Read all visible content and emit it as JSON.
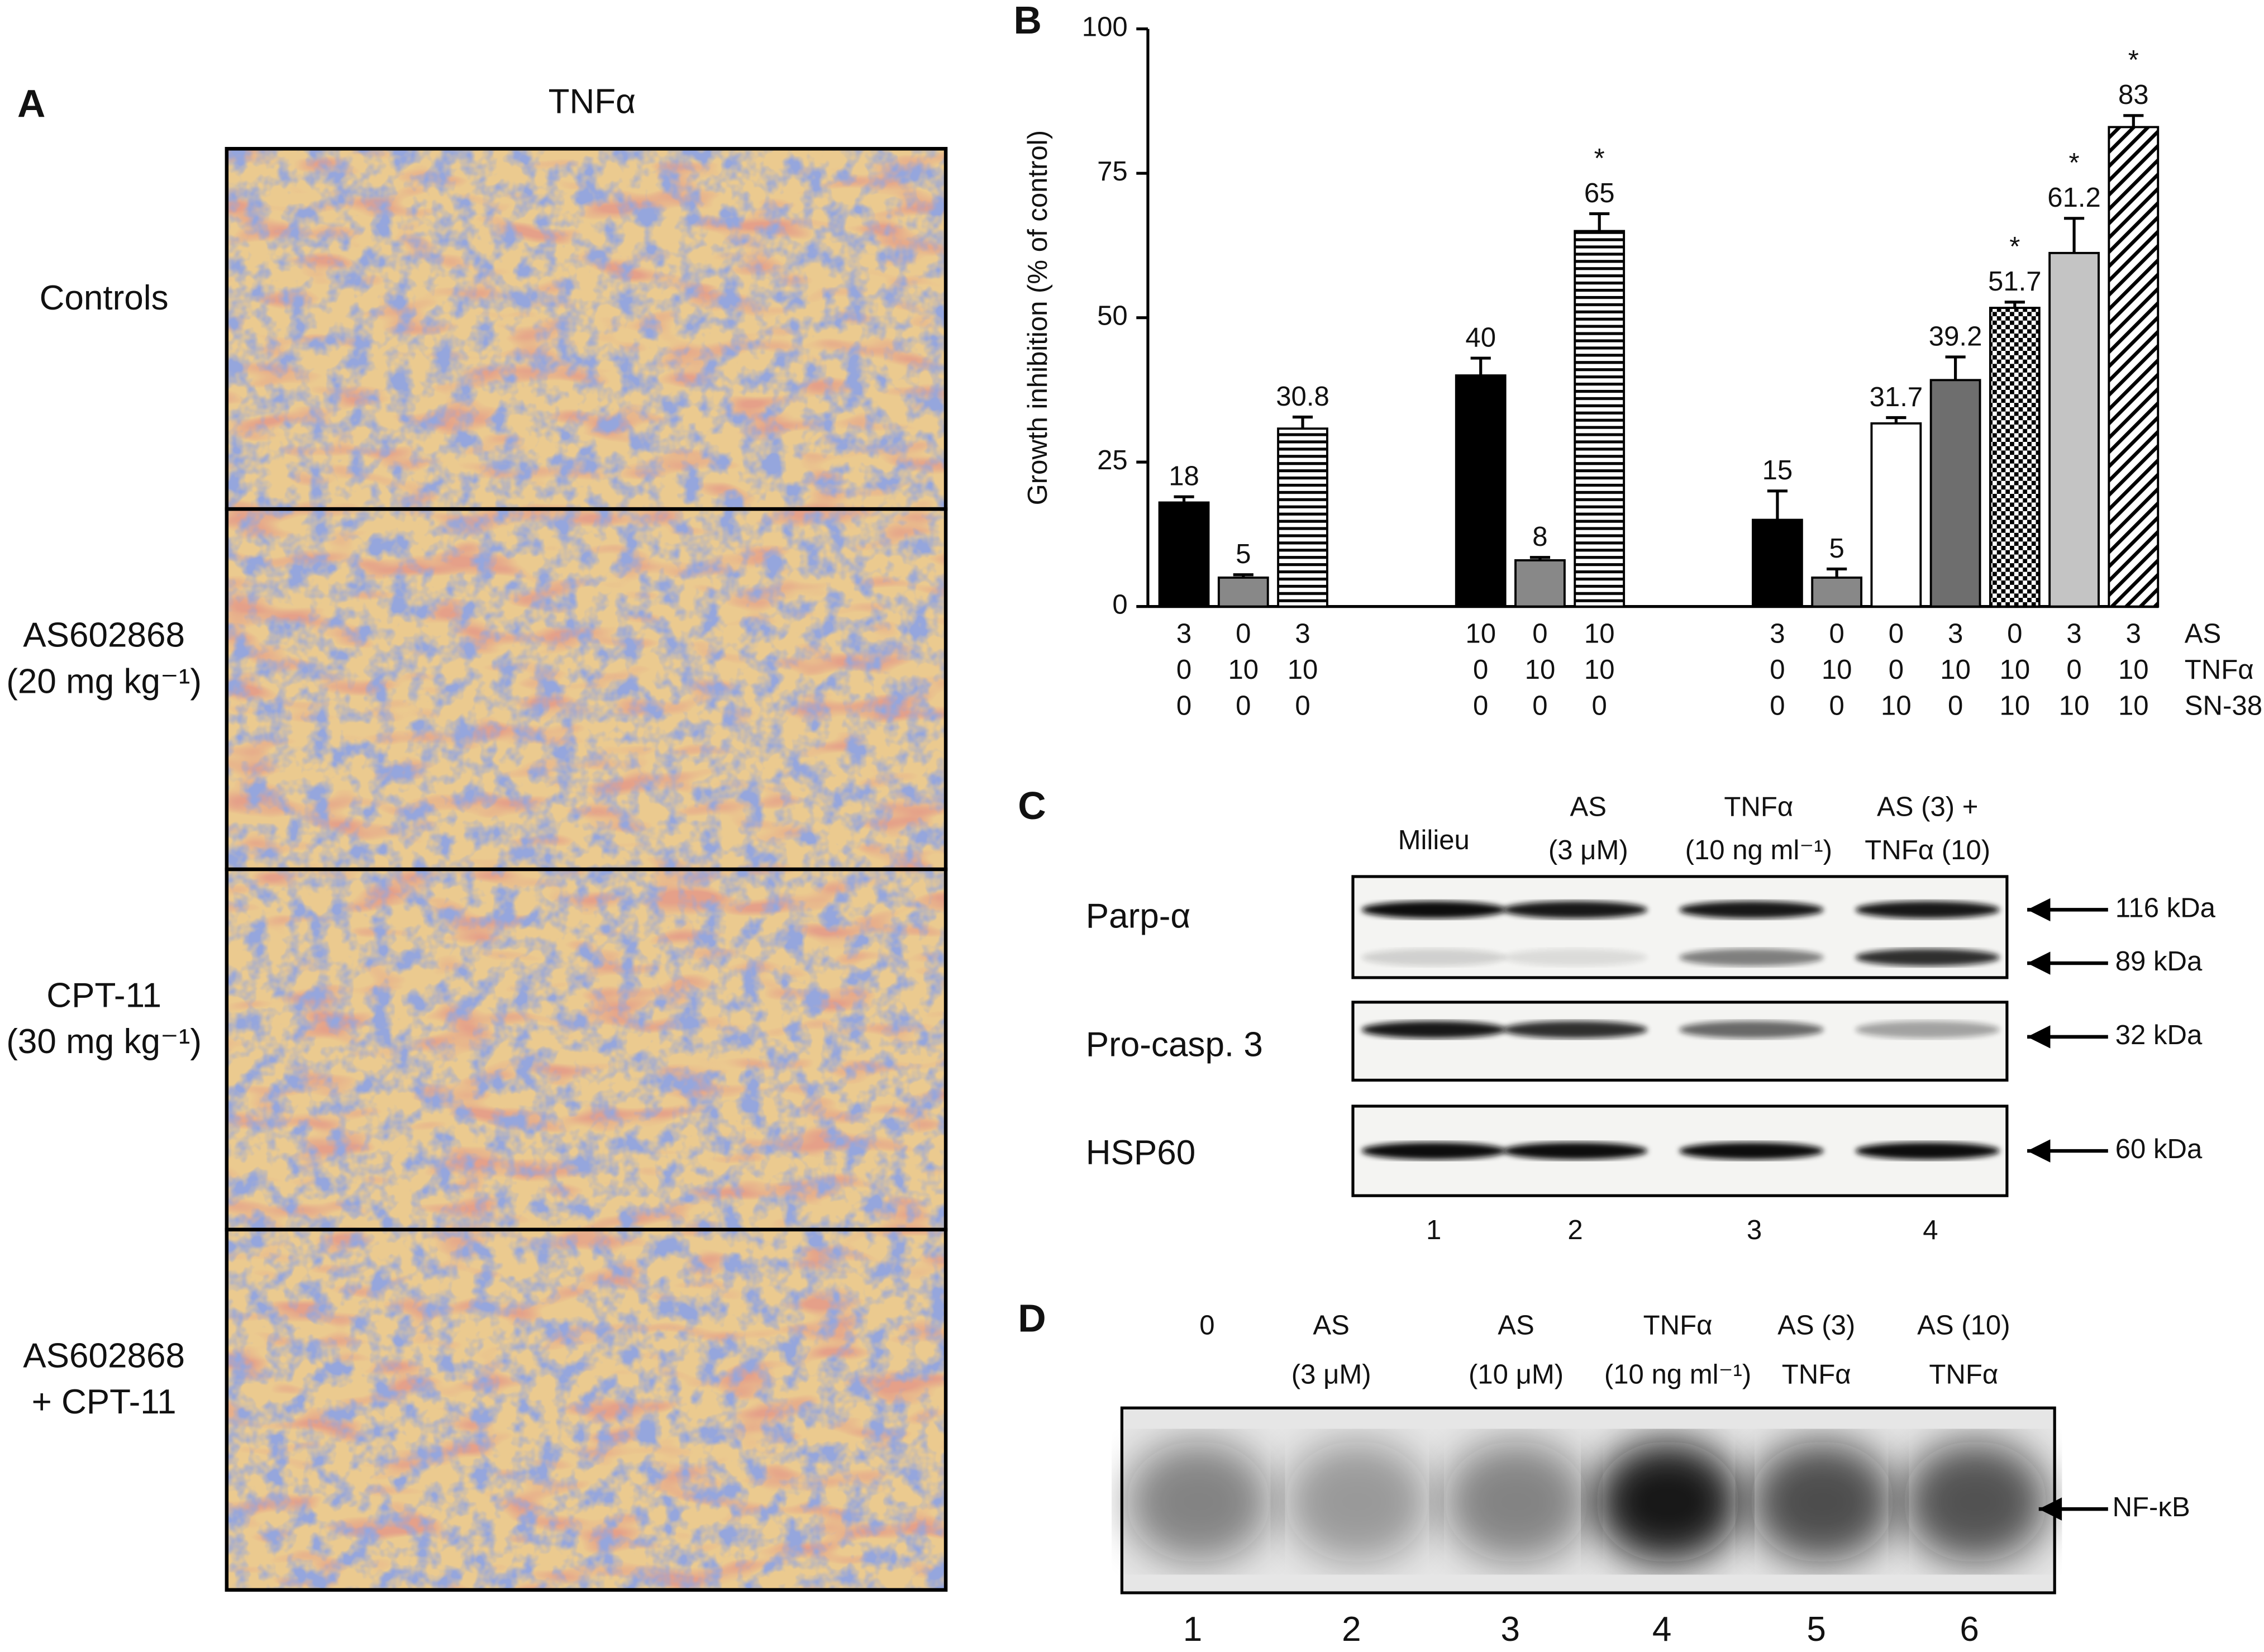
{
  "panel_a": {
    "label": "A",
    "column_header": "TNFα",
    "rows": [
      [
        "Controls"
      ],
      [
        "AS602868",
        "(20 mg kg⁻¹)"
      ],
      [
        "CPT-11",
        "(30 mg kg⁻¹)"
      ],
      [
        "AS602868",
        "+ CPT-11"
      ]
    ]
  },
  "chart_data": {
    "type": "bar",
    "panel_label": "B",
    "ylabel": "Growth inhibition (% of control)",
    "values": [
      18,
      5,
      30.8,
      40,
      8,
      65,
      15,
      5,
      31.7,
      39.2,
      51.7,
      61.2,
      83
    ],
    "errors": [
      1,
      0.5,
      2,
      3,
      0.5,
      3,
      5,
      1.5,
      1,
      4,
      1,
      6,
      2
    ],
    "annotations": [
      null,
      null,
      null,
      null,
      null,
      "*",
      null,
      null,
      null,
      null,
      "*",
      "*",
      "*"
    ],
    "fills": [
      "black",
      "gray",
      "hlines",
      "black",
      "gray",
      "hlines",
      "black",
      "gray",
      "white",
      "darkgray",
      "checker",
      "lightgray",
      "diag"
    ],
    "condition_rows": [
      {
        "name": "AS",
        "values": [
          "3",
          "0",
          "3",
          "10",
          "0",
          "10",
          "3",
          "0",
          "0",
          "3",
          "0",
          "3",
          "3"
        ]
      },
      {
        "name": "TNFα",
        "values": [
          "0",
          "10",
          "10",
          "0",
          "10",
          "10",
          "0",
          "10",
          "0",
          "10",
          "10",
          "0",
          "10"
        ]
      },
      {
        "name": "SN-38",
        "values": [
          "0",
          "0",
          "0",
          "0",
          "0",
          "0",
          "0",
          "0",
          "10",
          "0",
          "10",
          "10",
          "10"
        ]
      }
    ],
    "ylim": [
      0,
      100
    ],
    "yticks": [
      0,
      25,
      50,
      75,
      100
    ]
  },
  "panel_c": {
    "label": "C",
    "lanes": [
      {
        "header": [
          "Milieu"
        ],
        "number": "1"
      },
      {
        "header": [
          "AS",
          "(3 μM)"
        ],
        "number": "2"
      },
      {
        "header": [
          "TNFα",
          "(10 ng ml⁻¹)"
        ],
        "number": "3"
      },
      {
        "header": [
          "AS (3) +",
          "TNFα (10)"
        ],
        "number": "4"
      }
    ],
    "rows": [
      {
        "name": "Parp-α",
        "markers": [
          "116 kDa",
          "89 kDa"
        ]
      },
      {
        "name": "Pro-casp. 3",
        "markers": [
          "32 kDa"
        ]
      },
      {
        "name": "HSP60",
        "markers": [
          "60 kDa"
        ]
      }
    ]
  },
  "panel_d": {
    "label": "D",
    "lanes": [
      {
        "header": [
          "0"
        ],
        "number": "1"
      },
      {
        "header": [
          "AS",
          "(3 μM)"
        ],
        "number": "2"
      },
      {
        "header": [
          "AS",
          "(10 μM)"
        ],
        "number": "3"
      },
      {
        "header": [
          "TNFα",
          "(10 ng ml⁻¹)"
        ],
        "number": "4"
      },
      {
        "header": [
          "AS (3)",
          "TNFα"
        ],
        "number": "5"
      },
      {
        "header": [
          "AS (10)",
          "TNFα"
        ],
        "number": "6"
      }
    ],
    "marker": "NF-κB"
  }
}
